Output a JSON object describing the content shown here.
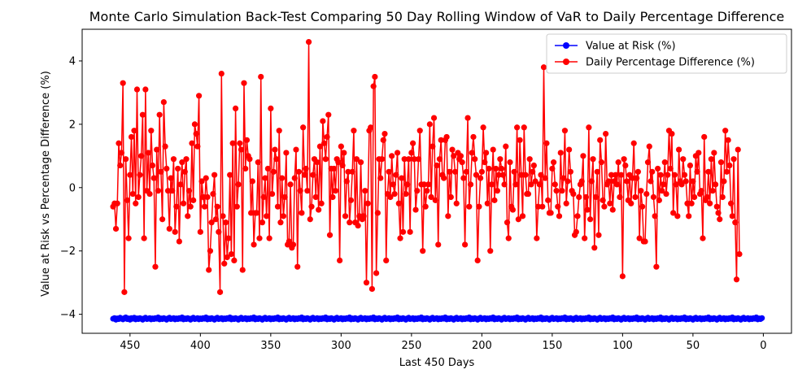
{
  "chart_data": {
    "type": "line",
    "title": "Monte Carlo Simulation Back-Test Comparing 50 Day Rolling Window of VaR to Daily Percentage Difference",
    "xlabel": "Last 450 Days",
    "ylabel": "Value at Risk vs Percentage Difference (%)",
    "xlim": [
      484,
      -20
    ],
    "ylim": [
      -4.6,
      5.0
    ],
    "x_inverted": true,
    "grid": false,
    "legend_position": "top-right",
    "xticks": [
      450,
      400,
      350,
      300,
      250,
      200,
      150,
      100,
      50,
      0
    ],
    "xtick_labels": [
      "450",
      "400",
      "350",
      "300",
      "250",
      "200",
      "150",
      "100",
      "50",
      "0"
    ],
    "yticks": [
      -4,
      -2,
      0,
      2,
      4
    ],
    "ytick_labels": [
      "−4",
      "−2",
      "0",
      "2",
      "4"
    ],
    "x_start": 462,
    "x_step": -1,
    "series": [
      {
        "name": "Value at Risk (%)",
        "color": "#0000ff",
        "marker": "circle",
        "values": [
          -4.14,
          -4.12,
          -4.17,
          -4.13,
          -4.15,
          -4.11,
          -4.14,
          -4.16,
          -4.12,
          -4.1,
          -4.15,
          -4.13,
          -4.17,
          -4.12,
          -4.14,
          -4.11,
          -4.16,
          -4.13,
          -4.15,
          -4.12,
          -4.14,
          -4.17,
          -4.13,
          -4.11,
          -4.15,
          -4.14,
          -4.12,
          -4.16,
          -4.13,
          -4.15,
          -4.12,
          -4.14,
          -4.1,
          -4.16,
          -4.13,
          -4.15,
          -4.12,
          -4.14,
          -4.17,
          -4.13,
          -4.11,
          -4.15,
          -4.14,
          -4.12,
          -4.16,
          -4.13,
          -4.15,
          -4.12,
          -4.14,
          -4.1,
          -4.16,
          -4.13,
          -4.15,
          -4.12,
          -4.14,
          -4.17,
          -4.13,
          -4.11,
          -4.15,
          -4.14,
          -4.12,
          -4.16,
          -4.13,
          -4.15,
          -4.12,
          -4.14,
          -4.1,
          -4.16,
          -4.13,
          -4.15,
          -4.12,
          -4.14,
          -4.17,
          -4.13,
          -4.11,
          -4.15,
          -4.14,
          -4.12,
          -4.16,
          -4.13,
          -4.15,
          -4.12,
          -4.14,
          -4.1,
          -4.16,
          -4.13,
          -4.15,
          -4.12,
          -4.14,
          -4.17,
          -4.13,
          -4.11,
          -4.15,
          -4.14,
          -4.12,
          -4.16,
          -4.13,
          -4.15,
          -4.12,
          -4.14,
          -4.1,
          -4.16,
          -4.13,
          -4.15,
          -4.12,
          -4.14,
          -4.17,
          -4.13,
          -4.11,
          -4.15,
          -4.14,
          -4.12,
          -4.16,
          -4.13,
          -4.15,
          -4.12,
          -4.14,
          -4.1,
          -4.16,
          -4.13,
          -4.15,
          -4.12,
          -4.14,
          -4.17,
          -4.13,
          -4.11,
          -4.15,
          -4.14,
          -4.12,
          -4.16,
          -4.13,
          -4.15,
          -4.12,
          -4.14,
          -4.1,
          -4.16,
          -4.13,
          -4.15,
          -4.12,
          -4.14,
          -4.17,
          -4.13,
          -4.11,
          -4.15,
          -4.14,
          -4.12,
          -4.16,
          -4.13,
          -4.15,
          -4.12,
          -4.14,
          -4.1,
          -4.16,
          -4.13,
          -4.15,
          -4.12,
          -4.14,
          -4.17,
          -4.13,
          -4.11,
          -4.15,
          -4.14,
          -4.12,
          -4.16,
          -4.13,
          -4.15,
          -4.12,
          -4.14,
          -4.1,
          -4.16,
          -4.13,
          -4.15,
          -4.12,
          -4.14,
          -4.17,
          -4.13,
          -4.11,
          -4.15,
          -4.14,
          -4.12,
          -4.16,
          -4.13,
          -4.15,
          -4.12,
          -4.14,
          -4.1,
          -4.16,
          -4.13,
          -4.15,
          -4.12,
          -4.14,
          -4.17,
          -4.13,
          -4.11,
          -4.15,
          -4.14,
          -4.12,
          -4.16,
          -4.13,
          -4.15,
          -4.12,
          -4.14,
          -4.1,
          -4.16,
          -4.13,
          -4.15,
          -4.12,
          -4.14,
          -4.17,
          -4.13,
          -4.11,
          -4.15,
          -4.14,
          -4.12,
          -4.16,
          -4.13,
          -4.15,
          -4.12,
          -4.14,
          -4.1,
          -4.16,
          -4.13,
          -4.15,
          -4.12,
          -4.14,
          -4.17,
          -4.13,
          -4.11,
          -4.15,
          -4.14,
          -4.12,
          -4.16,
          -4.13,
          -4.15,
          -4.12,
          -4.14,
          -4.1,
          -4.16,
          -4.13,
          -4.15,
          -4.12,
          -4.14,
          -4.17,
          -4.13,
          -4.11,
          -4.15,
          -4.14,
          -4.12,
          -4.16,
          -4.13,
          -4.15,
          -4.12,
          -4.14,
          -4.1,
          -4.16,
          -4.13,
          -4.15,
          -4.12,
          -4.14,
          -4.17,
          -4.13,
          -4.11,
          -4.15,
          -4.14,
          -4.12,
          -4.16,
          -4.13,
          -4.15,
          -4.12,
          -4.14,
          -4.1,
          -4.16,
          -4.13,
          -4.15,
          -4.12,
          -4.14,
          -4.17,
          -4.13,
          -4.11,
          -4.15,
          -4.14,
          -4.12,
          -4.16,
          -4.13,
          -4.15,
          -4.12,
          -4.14,
          -4.1,
          -4.16,
          -4.13,
          -4.15,
          -4.12,
          -4.14,
          -4.17,
          -4.13,
          -4.11,
          -4.15,
          -4.14,
          -4.12,
          -4.16,
          -4.13,
          -4.15,
          -4.12,
          -4.14,
          -4.1,
          -4.16,
          -4.13,
          -4.15,
          -4.12,
          -4.14,
          -4.17,
          -4.13,
          -4.11,
          -4.15,
          -4.14,
          -4.12,
          -4.16,
          -4.13,
          -4.15,
          -4.12,
          -4.14,
          -4.1,
          -4.16,
          -4.13,
          -4.15,
          -4.12,
          -4.14,
          -4.17,
          -4.13,
          -4.11,
          -4.15,
          -4.14,
          -4.12,
          -4.16,
          -4.13,
          -4.15,
          -4.12,
          -4.14,
          -4.1,
          -4.16,
          -4.13,
          -4.15,
          -4.12,
          -4.14,
          -4.17,
          -4.13,
          -4.11,
          -4.15,
          -4.14,
          -4.12,
          -4.16,
          -4.13,
          -4.15,
          -4.12,
          -4.14,
          -4.1,
          -4.16,
          -4.13,
          -4.15,
          -4.12,
          -4.14,
          -4.17,
          -4.13,
          -4.11,
          -4.15,
          -4.14,
          -4.12,
          -4.16,
          -4.13,
          -4.15,
          -4.12,
          -4.14,
          -4.1,
          -4.16,
          -4.13,
          -4.15,
          -4.12,
          -4.14,
          -4.17,
          -4.13,
          -4.11,
          -4.15,
          -4.14,
          -4.12,
          -4.16,
          -4.13,
          -4.15,
          -4.12,
          -4.14,
          -4.1,
          -4.16,
          -4.13,
          -4.15,
          -4.12,
          -4.14,
          -4.17,
          -4.13,
          -4.11,
          -4.15,
          -4.14,
          -4.12,
          -4.16,
          -4.13,
          -4.15,
          -4.12,
          -4.14,
          -4.1,
          -4.16,
          -4.13,
          -4.15,
          -4.12,
          -4.14,
          -4.17,
          -4.13,
          -4.11,
          -4.15,
          -4.14,
          -4.12,
          -4.16,
          -4.13,
          -4.15,
          -4.12,
          -4.14,
          -4.1,
          -4.16,
          -4.13,
          -4.15,
          -4.12,
          -4.14,
          -4.17,
          -4.13,
          -4.11,
          -4.15,
          -4.14,
          -4.12,
          -4.16,
          -4.13,
          -4.15,
          -4.12,
          -4.14,
          -4.1,
          -4.16,
          -4.13,
          -4.15,
          -4.12,
          -4.14,
          -4.17,
          -4.13,
          -4.11,
          -4.15,
          -4.14,
          -4.12,
          -4.16,
          -4.13,
          -4.15,
          -4.12,
          -4.14,
          -4.1,
          -4.16,
          -4.13,
          -4.15,
          -4.12
        ]
      },
      {
        "name": "Daily Percentage Difference (%)",
        "color": "#ff0000",
        "marker": "circle",
        "values": [
          -0.6,
          -0.5,
          -1.3,
          -0.5,
          1.4,
          0.7,
          1.1,
          3.3,
          -3.3,
          0.9,
          -0.4,
          -1.6,
          0.4,
          1.6,
          -0.2,
          1.8,
          -0.5,
          3.1,
          -0.3,
          0.4,
          1.0,
          2.3,
          -1.6,
          3.1,
          -0.1,
          1.1,
          -0.2,
          1.8,
          0.7,
          0.3,
          -2.5,
          1.2,
          -0.1,
          2.3,
          0.5,
          -1.0,
          2.7,
          1.3,
          0.6,
          -0.1,
          -1.3,
          0.3,
          -0.1,
          0.9,
          -1.4,
          -0.6,
          0.6,
          -1.7,
          0.1,
          0.8,
          -0.5,
          0.5,
          0.9,
          -0.9,
          -0.1,
          -0.6,
          1.4,
          -0.4,
          2.0,
          1.7,
          1.3,
          2.9,
          -1.4,
          0.2,
          -0.3,
          -0.6,
          0.3,
          -0.3,
          -2.6,
          -2.0,
          -1.1,
          -0.2,
          0.4,
          -1.0,
          -0.6,
          -1.4,
          -3.3,
          3.6,
          -0.9,
          -2.4,
          -1.1,
          -2.2,
          -1.6,
          0.4,
          -2.1,
          1.4,
          -2.3,
          2.5,
          -0.6,
          0.1,
          1.4,
          1.2,
          -2.6,
          3.3,
          0.6,
          1.5,
          1.0,
          0.9,
          -0.8,
          0.2,
          -1.8,
          -0.8,
          -0.8,
          0.8,
          -1.6,
          3.5,
          -1.1,
          -0.3,
          0.3,
          -0.9,
          0.6,
          -1.6,
          2.5,
          -0.2,
          0.5,
          1.2,
          0.9,
          -0.6,
          1.8,
          -1.1,
          0.3,
          -0.9,
          -0.3,
          1.1,
          -1.8,
          -1.7,
          0.1,
          -1.9,
          -1.8,
          0.3,
          1.2,
          -2.5,
          0.5,
          -0.1,
          -0.8,
          1.9,
          0.4,
          0.6,
          -0.1,
          4.6,
          -1.0,
          -0.6,
          0.4,
          0.9,
          -0.3,
          0.8,
          -0.7,
          1.3,
          -0.5,
          2.1,
          1.4,
          0.9,
          1.6,
          2.3,
          -1.5,
          0.6,
          -0.3,
          0.6,
          -0.1,
          0.9,
          0.8,
          -2.3,
          1.3,
          0.7,
          1.1,
          -0.9,
          0.2,
          0.5,
          -1.1,
          -0.4,
          0.5,
          1.8,
          -1.1,
          0.9,
          -1.2,
          -0.9,
          0.8,
          -1.0,
          -0.9,
          -0.1,
          -3.0,
          -0.5,
          1.8,
          1.9,
          -3.2,
          3.2,
          3.5,
          -2.7,
          -0.8,
          0.9,
          0.3,
          0.9,
          1.5,
          1.7,
          -2.3,
          -0.2,
          0.5,
          -0.3,
          1.0,
          0.1,
          -0.2,
          0.4,
          1.1,
          -0.5,
          -1.6,
          0.3,
          -1.4,
          0.9,
          -0.2,
          0.1,
          0.9,
          -1.4,
          1.1,
          1.4,
          0.9,
          -0.7,
          -0.1,
          0.9,
          1.8,
          0.1,
          -2.0,
          0.1,
          -0.6,
          -0.1,
          0.1,
          2.0,
          -0.3,
          1.3,
          2.2,
          -0.4,
          0.7,
          -1.8,
          0.9,
          1.5,
          0.4,
          0.3,
          1.5,
          1.6,
          -0.9,
          0.5,
          -0.3,
          1.2,
          1.0,
          0.5,
          -0.5,
          1.1,
          0.9,
          1.0,
          0.8,
          0.3,
          -1.8,
          0.5,
          2.2,
          -0.6,
          0.1,
          1.1,
          1.6,
          0.9,
          0.4,
          -2.3,
          -0.6,
          0.3,
          0.5,
          1.9,
          0.8,
          1.1,
          -0.5,
          0.6,
          -2.0,
          0.1,
          1.2,
          -0.4,
          0.6,
          -0.1,
          0.4,
          0.9,
          0.6,
          0.4,
          0.1,
          1.3,
          -1.1,
          -1.6,
          0.8,
          -0.6,
          -0.7,
          0.5,
          0.1,
          1.9,
          -1.0,
          1.5,
          0.4,
          -0.9,
          1.9,
          0.4,
          -0.2,
          -0.2,
          0.9,
          0.1,
          0.5,
          0.7,
          0.2,
          -1.6,
          -0.6,
          0.1,
          0.4,
          -0.6,
          3.8,
          0.3,
          1.4,
          -0.4,
          -0.8,
          -0.8,
          0.6,
          0.8,
          0.1,
          -0.1,
          -0.6,
          -0.9,
          1.1,
          -0.1,
          0.3,
          1.8,
          -0.5,
          0.2,
          1.2,
          0.5,
          -0.1,
          -0.2,
          -1.5,
          -1.4,
          -0.9,
          -0.3,
          0.1,
          0.2,
          1.0,
          -1.6,
          -0.3,
          -0.7,
          1.9,
          -1.0,
          0.2,
          0.9,
          -1.9,
          -0.3,
          0.5,
          -1.5,
          1.5,
          0.8,
          -0.4,
          -0.6,
          1.7,
          0.1,
          0.2,
          -0.5,
          0.4,
          -0.7,
          0.2,
          0.4,
          0.1,
          0.8,
          -0.3,
          0.4,
          -2.8,
          0.9,
          0.7,
          0.2,
          -0.4,
          0.4,
          -0.5,
          0.3,
          1.4,
          -0.3,
          0.3,
          0.5,
          -1.6,
          -0.1,
          -0.6,
          -1.7,
          -1.7,
          -0.2,
          0.8,
          1.3,
          0.2,
          0.5,
          -0.3,
          -0.9,
          -2.5,
          0.6,
          -0.4,
          0.4,
          -0.1,
          0.1,
          0.8,
          -0.2,
          0.4,
          1.8,
          0.6,
          1.7,
          -0.8,
          0.4,
          0.1,
          -0.9,
          1.2,
          0.2,
          0.1,
          0.9,
          0.4,
          0.2,
          -0.5,
          -0.9,
          0.7,
          -0.5,
          0.2,
          -0.3,
          1.0,
          0.5,
          1.1,
          -0.2,
          -0.1,
          -1.6,
          1.6,
          -0.4,
          -0.3,
          0.5,
          -0.5,
          0.9,
          -0.1,
          1.1,
          0.1,
          -0.6,
          -0.8,
          -1.0,
          0.8,
          -0.3,
          0.2,
          1.8,
          0.5,
          1.5,
          0.7,
          -0.5,
          -0.9,
          0.9,
          -1.1,
          -2.9,
          1.2,
          -2.1
        ]
      }
    ]
  }
}
